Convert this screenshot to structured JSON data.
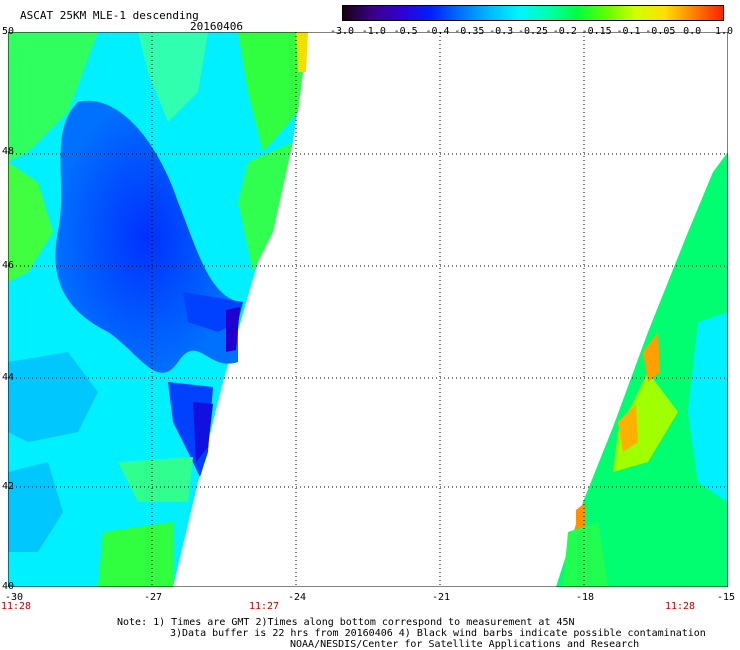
{
  "title": "ASCAT 25KM MLE-1 descending",
  "date": "20160406",
  "colorbar": {
    "labels": [
      "-3.0",
      "-1.0",
      "-0.5",
      "-0.4",
      "-0.35",
      "-0.3",
      "-0.25",
      "-0.2",
      "-0.15",
      "-0.1",
      "-0.05",
      "0.0",
      "1.0"
    ],
    "colors": [
      "#180010",
      "#3a0088",
      "#3200d0",
      "#0020ff",
      "#0070ff",
      "#00b8ff",
      "#00f4ff",
      "#00ffb0",
      "#00ff40",
      "#60ff00",
      "#d0ff00",
      "#ffe000",
      "#ff8000",
      "#ff2000"
    ]
  },
  "map": {
    "lat_labels": [
      "50",
      "48",
      "46",
      "44",
      "42",
      "40"
    ],
    "lon_labels": [
      "-30",
      "-27",
      "-24",
      "-21",
      "-18",
      "-15"
    ],
    "time_labels": [
      "11:28",
      "11:27",
      "11:28"
    ],
    "lat_range": [
      40,
      50
    ],
    "lon_range": [
      -30,
      -15
    ]
  },
  "notes": {
    "line1": "Note: 1) Times are GMT 2)Times along bottom correspond to measurement at 45N",
    "line2": "3)Data buffer is 22 hrs from 20160406 4) Black wind barbs indicate possible contamination",
    "line3": "NOAA/NESDIS/Center for Satellite Applications and Research"
  }
}
